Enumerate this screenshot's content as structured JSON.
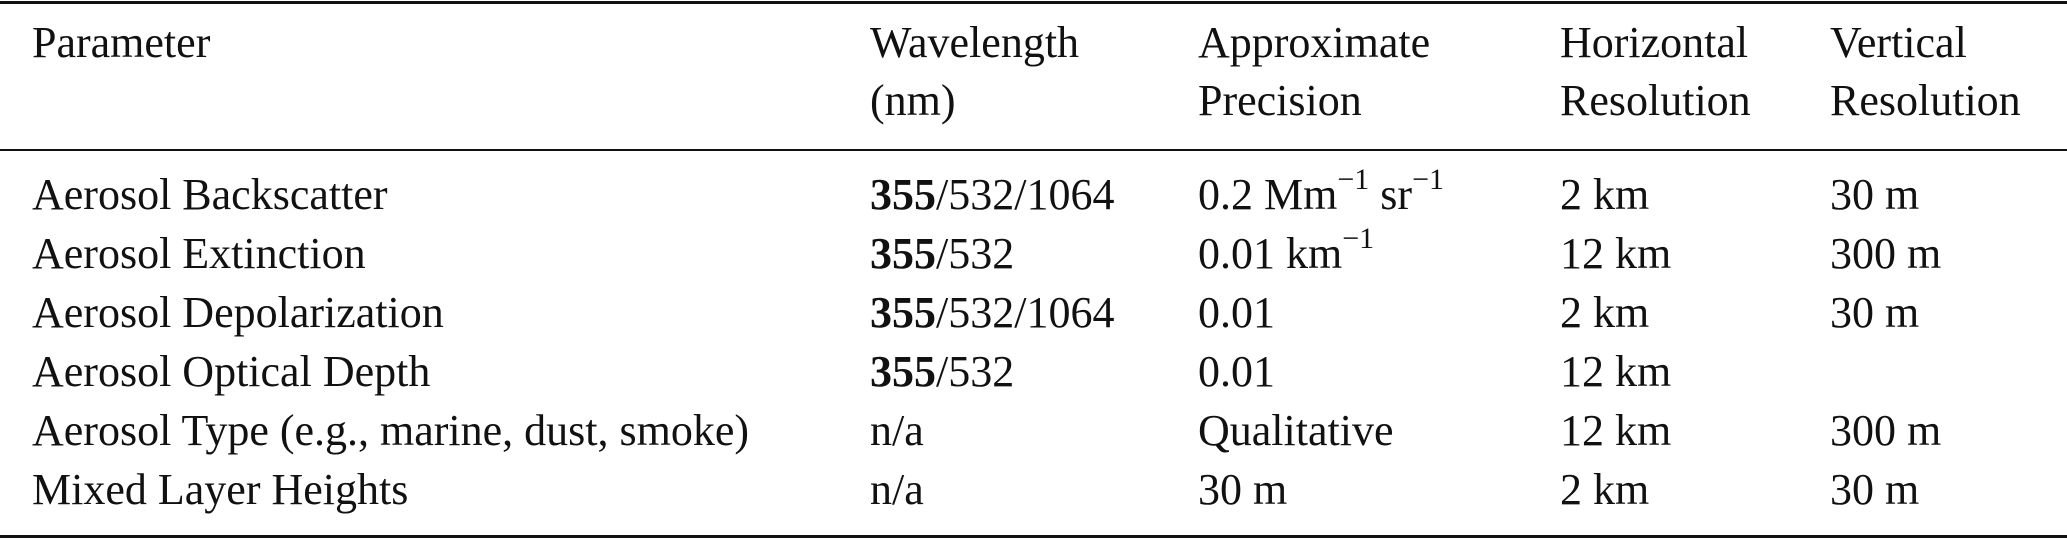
{
  "table": {
    "headers": [
      [
        "Parameter",
        ""
      ],
      [
        "Wavelength",
        "(nm)"
      ],
      [
        "Approximate",
        "Precision"
      ],
      [
        "Horizontal",
        "Resolution"
      ],
      [
        "Vertical",
        "Resolution"
      ]
    ],
    "rows": [
      {
        "parameter": "Aerosol Backscatter",
        "wavelength_bold": "355",
        "wavelength_rest": "/532/1064",
        "precision_value": "0.2 Mm",
        "precision_sup1": "−1",
        "precision_unit2": " sr",
        "precision_sup2": "−1",
        "horizontal": "2 km",
        "vertical": "30 m"
      },
      {
        "parameter": "Aerosol Extinction",
        "wavelength_bold": "355",
        "wavelength_rest": "/532",
        "precision_value": "0.01 km",
        "precision_sup1": "−1",
        "precision_unit2": "",
        "precision_sup2": "",
        "horizontal": "12 km",
        "vertical": "300 m"
      },
      {
        "parameter": "Aerosol Depolarization",
        "wavelength_bold": "355",
        "wavelength_rest": "/532/1064",
        "precision_value": "0.01",
        "precision_sup1": "",
        "precision_unit2": "",
        "precision_sup2": "",
        "horizontal": "2 km",
        "vertical": "30 m"
      },
      {
        "parameter": "Aerosol Optical Depth",
        "wavelength_bold": "355",
        "wavelength_rest": "/532",
        "precision_value": "0.01",
        "precision_sup1": "",
        "precision_unit2": "",
        "precision_sup2": "",
        "horizontal": "12 km",
        "vertical": ""
      },
      {
        "parameter": "Aerosol Type (e.g., marine, dust, smoke)",
        "wavelength_bold": "",
        "wavelength_rest": "n/a",
        "precision_value": "Qualitative",
        "precision_sup1": "",
        "precision_unit2": "",
        "precision_sup2": "",
        "horizontal": "12 km",
        "vertical": "300 m"
      },
      {
        "parameter": "Mixed Layer Heights",
        "wavelength_bold": "",
        "wavelength_rest": "n/a",
        "precision_value": "30 m",
        "precision_sup1": "",
        "precision_unit2": "",
        "precision_sup2": "",
        "horizontal": "2 km",
        "vertical": "30 m"
      }
    ]
  }
}
